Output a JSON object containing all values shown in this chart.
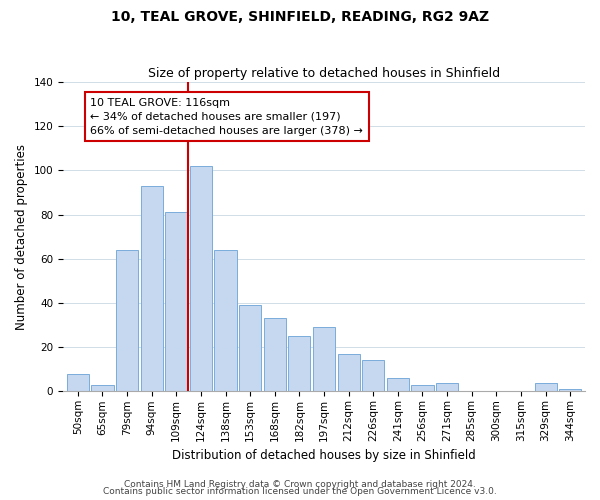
{
  "title": "10, TEAL GROVE, SHINFIELD, READING, RG2 9AZ",
  "subtitle": "Size of property relative to detached houses in Shinfield",
  "xlabel": "Distribution of detached houses by size in Shinfield",
  "ylabel": "Number of detached properties",
  "bar_labels": [
    "50sqm",
    "65sqm",
    "79sqm",
    "94sqm",
    "109sqm",
    "124sqm",
    "138sqm",
    "153sqm",
    "168sqm",
    "182sqm",
    "197sqm",
    "212sqm",
    "226sqm",
    "241sqm",
    "256sqm",
    "271sqm",
    "285sqm",
    "300sqm",
    "315sqm",
    "329sqm",
    "344sqm"
  ],
  "bar_values": [
    8,
    3,
    64,
    93,
    81,
    102,
    64,
    39,
    33,
    25,
    29,
    17,
    14,
    6,
    3,
    4,
    0,
    0,
    0,
    4,
    1
  ],
  "bar_color": "#c5d8f0",
  "bar_edge_color": "#7aaddb",
  "ylim": [
    0,
    140
  ],
  "vline_color": "#cc0000",
  "annotation_title": "10 TEAL GROVE: 116sqm",
  "annotation_line1": "← 34% of detached houses are smaller (197)",
  "annotation_line2": "66% of semi-detached houses are larger (378) →",
  "footer1": "Contains HM Land Registry data © Crown copyright and database right 2024.",
  "footer2": "Contains public sector information licensed under the Open Government Licence v3.0.",
  "background_color": "#ffffff",
  "title_fontsize": 10,
  "subtitle_fontsize": 9,
  "axis_label_fontsize": 8.5,
  "tick_fontsize": 7.5,
  "footer_fontsize": 6.5,
  "grid_color": "#d0dde8"
}
